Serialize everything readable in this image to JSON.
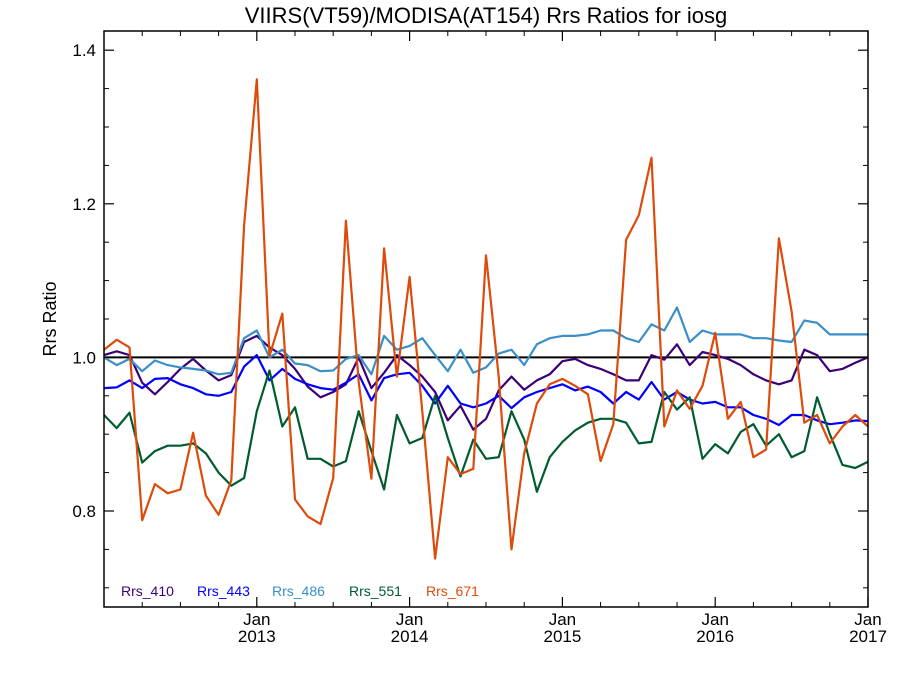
{
  "chart_data": {
    "type": "line",
    "title": "VIIRS(VT59)/MODISA(AT154)  Rrs Ratios for iosg",
    "xlabel": "",
    "ylabel": "Rrs Ratio",
    "xlim": [
      2012.0,
      2017.0
    ],
    "ylim": [
      0.675,
      1.425
    ],
    "yticks": [
      {
        "value": 0.8,
        "label": "0.8"
      },
      {
        "value": 1.0,
        "label": "1.0"
      },
      {
        "value": 1.2,
        "label": "1.2"
      },
      {
        "value": 1.4,
        "label": "1.4"
      }
    ],
    "xticks": [
      {
        "value": 2013,
        "month": "Jan",
        "year": "2013"
      },
      {
        "value": 2014,
        "month": "Jan",
        "year": "2014"
      },
      {
        "value": 2015,
        "month": "Jan",
        "year": "2015"
      },
      {
        "value": 2016,
        "month": "Jan",
        "year": "2016"
      },
      {
        "value": 2017,
        "month": "Jan",
        "year": "2017"
      }
    ],
    "reference_line": 1.0,
    "x": [
      2012.0,
      2012.083,
      2012.167,
      2012.25,
      2012.333,
      2012.417,
      2012.5,
      2012.583,
      2012.667,
      2012.75,
      2012.833,
      2012.917,
      2013.0,
      2013.083,
      2013.167,
      2013.25,
      2013.333,
      2013.417,
      2013.5,
      2013.583,
      2013.667,
      2013.75,
      2013.833,
      2013.917,
      2014.0,
      2014.083,
      2014.167,
      2014.25,
      2014.333,
      2014.417,
      2014.5,
      2014.583,
      2014.667,
      2014.75,
      2014.833,
      2014.917,
      2015.0,
      2015.083,
      2015.167,
      2015.25,
      2015.333,
      2015.417,
      2015.5,
      2015.583,
      2015.667,
      2015.75,
      2015.833,
      2015.917,
      2016.0,
      2016.083,
      2016.167,
      2016.25,
      2016.333,
      2016.417,
      2016.5,
      2016.583,
      2016.667,
      2016.75,
      2016.833,
      2016.917,
      2017.0
    ],
    "series": [
      {
        "name": "Rrs_410",
        "color": "#3c0078",
        "values": [
          1.003,
          1.008,
          1.003,
          0.967,
          0.952,
          0.968,
          0.985,
          0.998,
          0.983,
          0.97,
          0.977,
          1.02,
          1.028,
          1.013,
          1.003,
          0.985,
          0.962,
          0.948,
          0.955,
          0.965,
          1.0,
          0.96,
          0.98,
          1.003,
          0.99,
          0.975,
          0.955,
          0.918,
          0.937,
          0.906,
          0.92,
          0.957,
          0.975,
          0.958,
          0.97,
          0.978,
          0.995,
          0.998,
          0.99,
          0.985,
          0.978,
          0.97,
          0.97,
          1.003,
          0.997,
          1.017,
          0.99,
          1.007,
          1.003,
          0.998,
          0.99,
          0.978,
          0.97,
          0.965,
          0.97,
          1.01,
          1.003,
          0.982,
          0.985,
          0.993,
          1.0
        ]
      },
      {
        "name": "Rrs_443",
        "color": "#0000ff",
        "values": [
          0.96,
          0.961,
          0.97,
          0.96,
          0.972,
          0.973,
          0.965,
          0.96,
          0.952,
          0.95,
          0.955,
          0.988,
          1.003,
          0.97,
          0.985,
          0.972,
          0.965,
          0.96,
          0.958,
          0.967,
          0.978,
          0.944,
          0.973,
          0.978,
          0.98,
          0.963,
          0.94,
          0.963,
          0.94,
          0.935,
          0.94,
          0.95,
          0.934,
          0.948,
          0.955,
          0.96,
          0.965,
          0.957,
          0.962,
          0.955,
          0.94,
          0.955,
          0.945,
          0.968,
          0.945,
          0.955,
          0.945,
          0.94,
          0.942,
          0.935,
          0.935,
          0.925,
          0.92,
          0.912,
          0.925,
          0.925,
          0.918,
          0.913,
          0.915,
          0.918,
          0.917
        ]
      },
      {
        "name": "Rrs_486",
        "color": "#3a8fc8",
        "values": [
          1.0,
          0.99,
          0.998,
          0.982,
          0.996,
          0.99,
          0.987,
          0.985,
          0.983,
          0.978,
          0.98,
          1.025,
          1.035,
          1.0,
          1.01,
          0.992,
          0.99,
          0.982,
          0.983,
          0.998,
          1.003,
          0.978,
          1.028,
          1.01,
          1.015,
          1.025,
          1.003,
          0.982,
          1.01,
          0.98,
          0.987,
          1.005,
          1.01,
          0.99,
          1.017,
          1.025,
          1.028,
          1.028,
          1.03,
          1.035,
          1.035,
          1.025,
          1.02,
          1.043,
          1.035,
          1.065,
          1.02,
          1.035,
          1.03,
          1.03,
          1.03,
          1.025,
          1.025,
          1.022,
          1.02,
          1.048,
          1.045,
          1.03,
          1.03,
          1.03,
          1.03
        ]
      },
      {
        "name": "Rrs_551",
        "color": "#005c2e",
        "values": [
          0.925,
          0.908,
          0.928,
          0.863,
          0.878,
          0.885,
          0.885,
          0.888,
          0.875,
          0.85,
          0.833,
          0.843,
          0.93,
          0.983,
          0.91,
          0.935,
          0.868,
          0.868,
          0.858,
          0.865,
          0.93,
          0.878,
          0.828,
          0.925,
          0.888,
          0.895,
          0.95,
          0.895,
          0.845,
          0.893,
          0.868,
          0.87,
          0.93,
          0.893,
          0.825,
          0.87,
          0.89,
          0.905,
          0.915,
          0.92,
          0.92,
          0.915,
          0.888,
          0.89,
          0.955,
          0.932,
          0.948,
          0.868,
          0.887,
          0.875,
          0.903,
          0.913,
          0.885,
          0.9,
          0.87,
          0.878,
          0.948,
          0.9,
          0.86,
          0.856,
          0.864
        ]
      },
      {
        "name": "Rrs_671",
        "color": "#dd4a0a",
        "values": [
          1.01,
          1.023,
          1.013,
          0.788,
          0.835,
          0.823,
          0.828,
          0.902,
          0.82,
          0.795,
          0.84,
          1.172,
          1.362,
          1.002,
          1.057,
          0.815,
          0.793,
          0.783,
          0.843,
          1.178,
          0.968,
          0.842,
          1.142,
          0.975,
          1.105,
          0.93,
          0.738,
          0.87,
          0.848,
          0.855,
          1.133,
          0.975,
          0.75,
          0.875,
          0.94,
          0.965,
          0.972,
          0.963,
          0.952,
          0.865,
          0.913,
          1.153,
          1.185,
          1.26,
          0.91,
          0.957,
          0.933,
          0.963,
          1.032,
          0.92,
          0.942,
          0.87,
          0.88,
          1.155,
          1.06,
          0.915,
          0.925,
          0.888,
          0.91,
          0.925,
          0.91
        ]
      }
    ],
    "legend": {
      "placement": "bottom-left",
      "orientation": "horizontal"
    }
  }
}
